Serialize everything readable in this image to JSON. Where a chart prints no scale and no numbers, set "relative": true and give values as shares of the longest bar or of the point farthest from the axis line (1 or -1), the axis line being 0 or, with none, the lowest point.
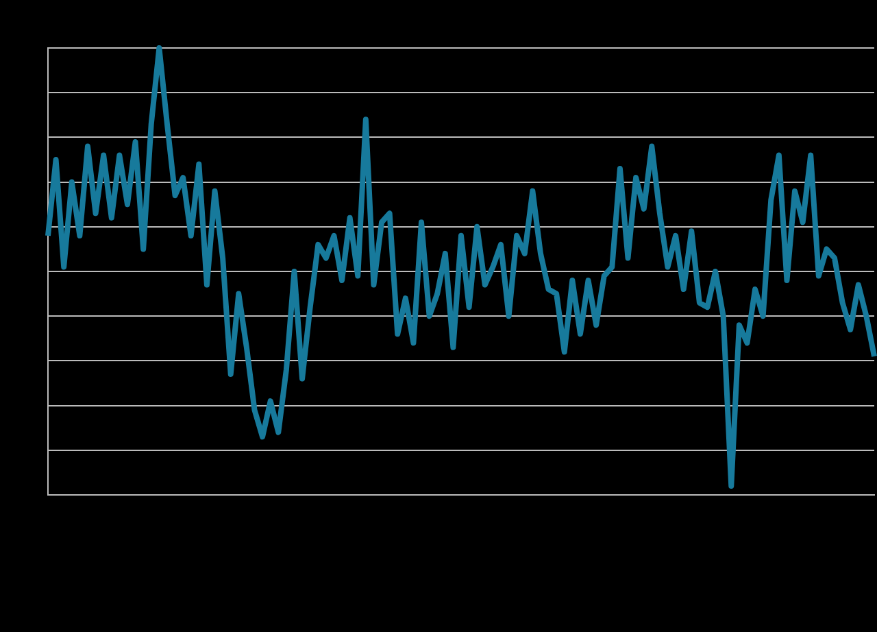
{
  "chart_data": {
    "type": "line",
    "relative": true,
    "grid": "y",
    "marker": "none",
    "line_style": "solid",
    "categories": [
      null,
      null,
      null,
      null,
      null,
      null,
      null,
      null,
      null,
      null,
      null,
      null,
      null,
      null,
      null,
      null,
      null,
      null,
      null,
      null,
      null,
      null,
      null,
      null,
      null,
      null,
      null,
      null,
      null,
      null,
      null,
      null,
      null,
      null,
      null,
      null,
      null,
      null,
      null,
      null,
      null,
      null,
      null,
      null,
      null,
      null,
      null,
      null,
      null,
      null,
      null,
      null,
      null,
      null,
      null,
      null,
      null,
      null,
      null,
      null,
      null,
      null,
      null,
      null,
      null,
      null,
      null,
      null,
      null,
      null,
      null,
      null,
      null,
      null,
      null,
      null,
      null,
      null,
      null,
      null,
      null,
      null,
      null,
      null,
      null,
      null,
      null,
      null,
      null,
      null,
      null,
      null,
      null,
      null,
      null,
      null,
      null,
      null,
      null,
      null,
      null,
      null,
      null,
      null,
      null
    ],
    "series": [
      {
        "color": "#177a9c",
        "values": [
          0.58,
          0.75,
          0.51,
          0.7,
          0.58,
          0.78,
          0.63,
          0.76,
          0.62,
          0.76,
          0.65,
          0.79,
          0.55,
          0.83,
          1,
          0.83,
          0.67,
          0.71,
          0.58,
          0.74,
          0.47,
          0.68,
          0.53,
          0.27,
          0.45,
          0.33,
          0.19,
          0.13,
          0.21,
          0.14,
          0.28,
          0.5,
          0.26,
          0.42,
          0.56,
          0.53,
          0.58,
          0.48,
          0.62,
          0.49,
          0.84,
          0.47,
          0.61,
          0.63,
          0.36,
          0.44,
          0.34,
          0.61,
          0.4,
          0.45,
          0.54,
          0.33,
          0.58,
          0.42,
          0.6,
          0.47,
          0.51,
          0.56,
          0.4,
          0.58,
          0.54,
          0.68,
          0.54,
          0.46,
          0.45,
          0.32,
          0.48,
          0.36,
          0.48,
          0.38,
          0.49,
          0.51,
          0.73,
          0.53,
          0.71,
          0.64,
          0.78,
          0.63,
          0.51,
          0.58,
          0.46,
          0.59,
          0.43,
          0.42,
          0.5,
          0.4,
          0.02,
          0.38,
          0.34,
          0.46,
          0.4,
          0.66,
          0.76,
          0.48,
          0.68,
          0.61,
          0.76,
          0.49,
          0.55,
          0.53,
          0.43,
          0.37,
          0.47,
          0.4,
          0.31
        ]
      }
    ]
  }
}
